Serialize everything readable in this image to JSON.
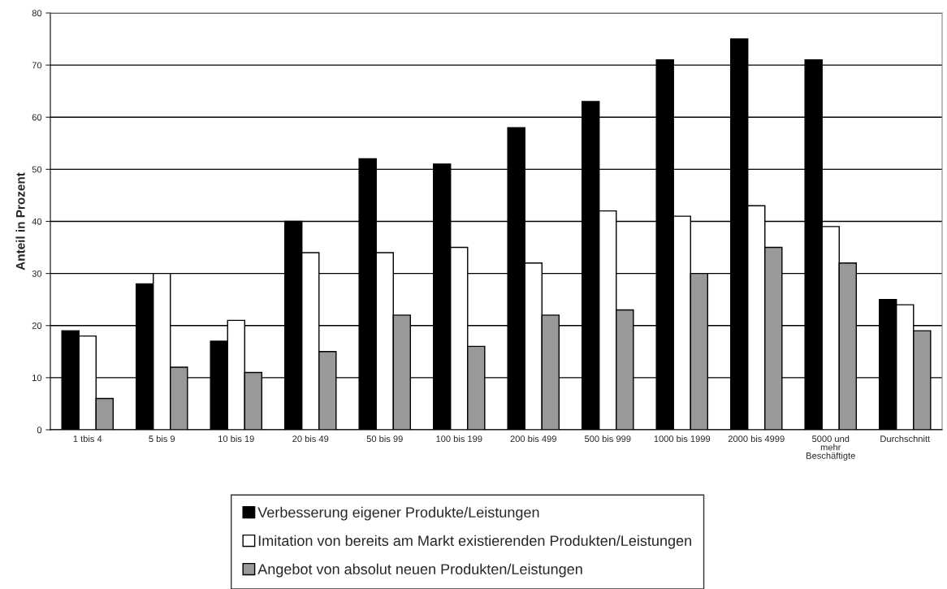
{
  "chart_data": {
    "type": "bar",
    "ylabel": "Anteil in Prozent",
    "categories": [
      "1 tbis 4",
      "5 bis 9",
      "10 bis 19",
      "20 bis 49",
      "50 bis 99",
      "100 bis 199",
      "200 bis 499",
      "500 bis 999",
      "1000 bis 1999",
      "2000 bis 4999",
      "5000 und\nmehr\nBeschäftigte",
      "Durchschnitt"
    ],
    "series": [
      {
        "name": "Verbesserung eigener Produkte/Leistungen",
        "color": "#000000",
        "values": [
          19,
          28,
          17,
          40,
          52,
          51,
          58,
          63,
          71,
          75,
          71,
          25
        ]
      },
      {
        "name": "Imitation von bereits am Markt existierenden Produkten/Leistungen",
        "color": "#ffffff",
        "values": [
          18,
          30,
          21,
          34,
          34,
          35,
          32,
          42,
          41,
          43,
          39,
          24
        ]
      },
      {
        "name": "Angebot von absolut neuen Produkten/Leistungen",
        "color": "#999999",
        "values": [
          6,
          12,
          11,
          15,
          22,
          16,
          22,
          23,
          30,
          35,
          32,
          19
        ]
      }
    ],
    "ylim": [
      0,
      80
    ],
    "yticks": [
      0,
      10,
      20,
      30,
      40,
      50,
      60,
      70,
      80
    ],
    "grid": "y",
    "legend": "bottom"
  }
}
